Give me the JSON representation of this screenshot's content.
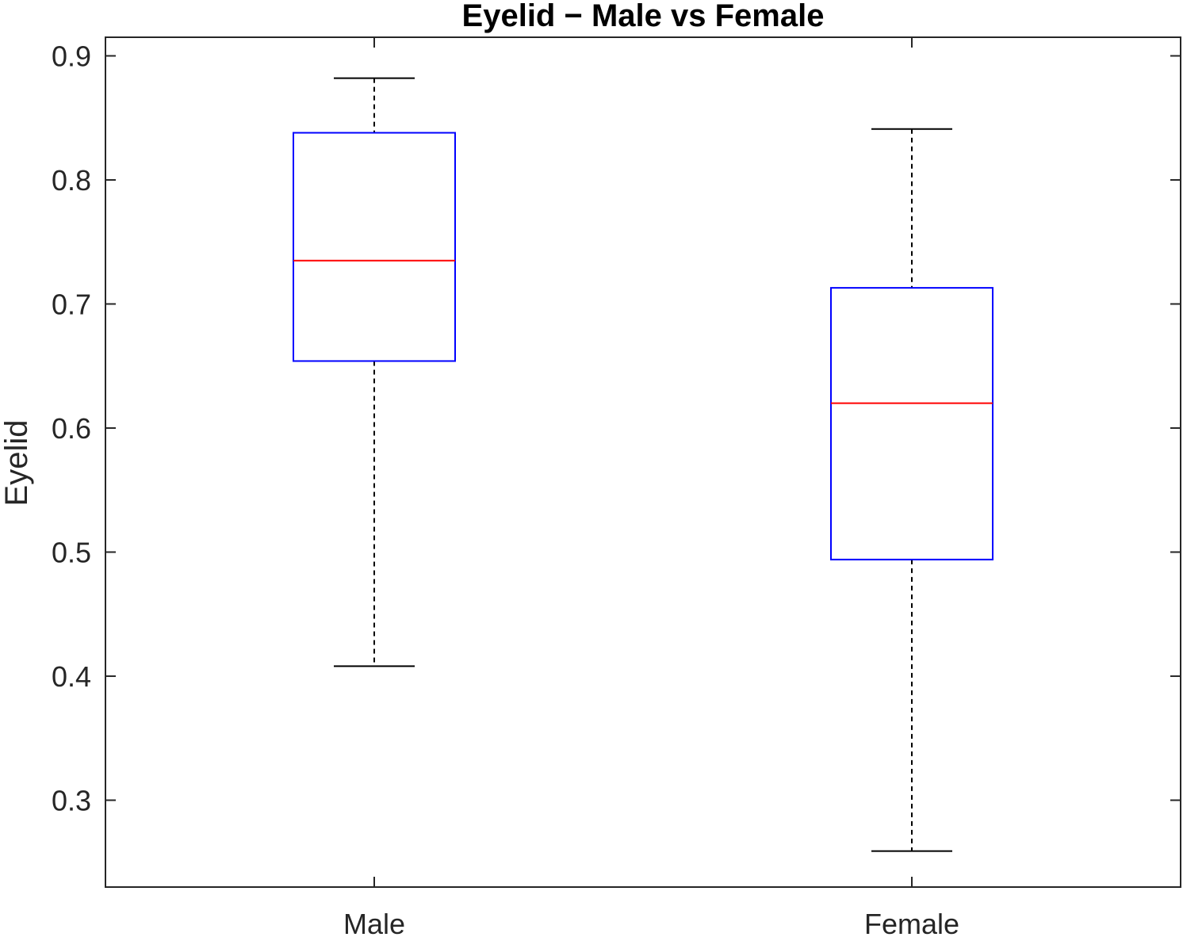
{
  "chart_data": {
    "type": "box",
    "title": "Eyelid  − Male vs Female",
    "xlabel": "",
    "ylabel": "Eyelid",
    "ylim": [
      0.23,
      0.915
    ],
    "yticks": [
      0.3,
      0.4,
      0.5,
      0.6,
      0.7,
      0.8,
      0.9
    ],
    "ytick_labels": [
      "0.3",
      "0.4",
      "0.5",
      "0.6",
      "0.7",
      "0.8",
      "0.9"
    ],
    "categories": [
      "Male",
      "Female"
    ],
    "boxes": [
      {
        "category": "Male",
        "whisker_low": 0.408,
        "q1": 0.654,
        "median": 0.735,
        "q3": 0.838,
        "whisker_high": 0.882
      },
      {
        "category": "Female",
        "whisker_low": 0.259,
        "q1": 0.494,
        "median": 0.62,
        "q3": 0.713,
        "whisker_high": 0.841
      }
    ],
    "grid": false,
    "colors": {
      "box": "#0000ff",
      "median": "#ff0000",
      "whisker": "#000000",
      "axis": "#262626"
    }
  }
}
